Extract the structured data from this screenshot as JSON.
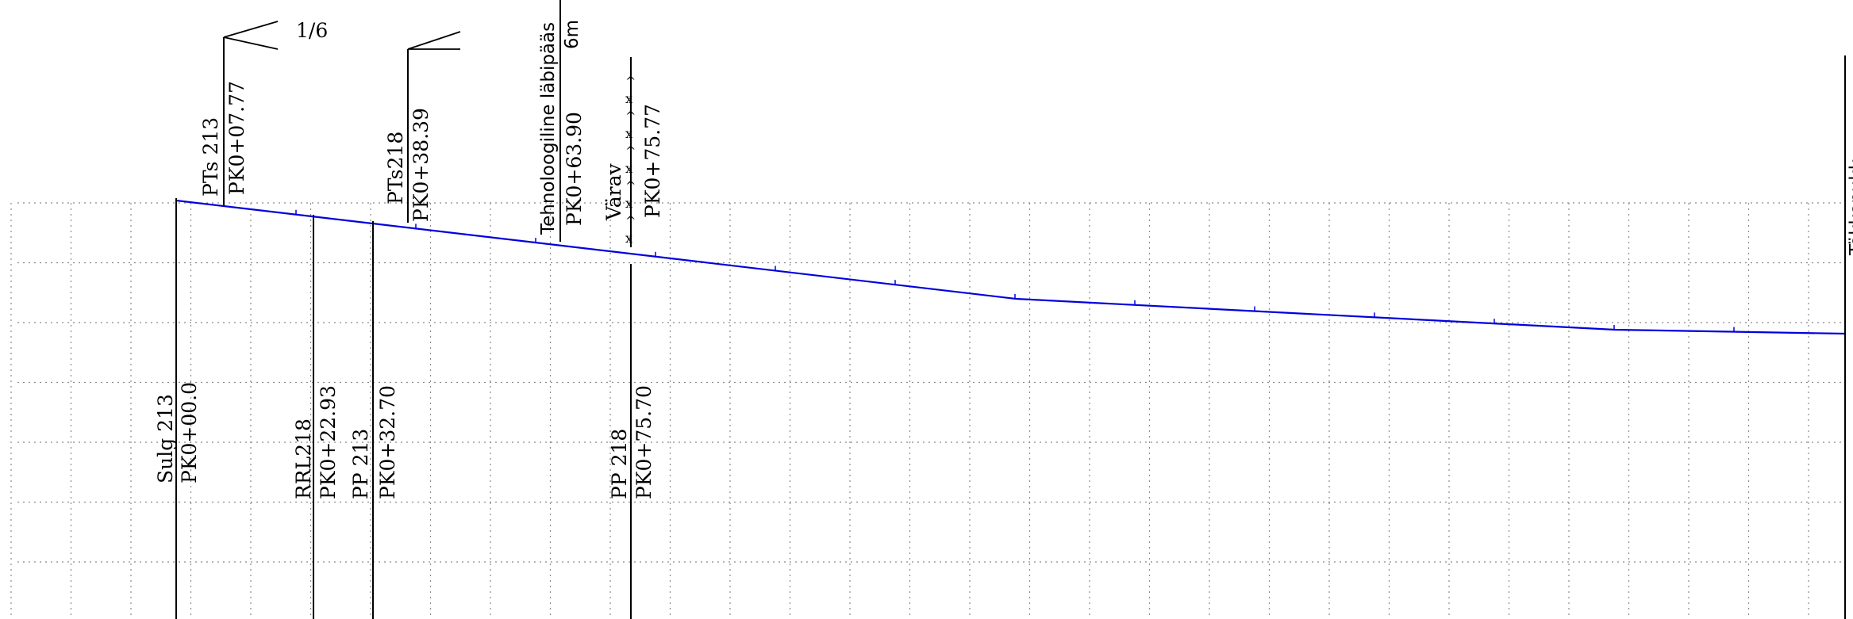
{
  "diagram": {
    "slope_label": "1/6",
    "station_markers_top": [
      {
        "id": "pts213",
        "name": "PTs 213",
        "chainage": "PK0+07.77"
      },
      {
        "id": "pts218",
        "name": "PTs218",
        "chainage": "PK0+38.39"
      },
      {
        "id": "passage",
        "name": "Tehnoloogiline läbipääs",
        "width": "6m",
        "chainage": "PK0+63.90"
      },
      {
        "id": "gate",
        "name": "Värav",
        "chainage": "PK0+75.77"
      }
    ],
    "station_markers_bottom": [
      {
        "id": "sulg213",
        "name": "Sulg 213",
        "chainage": "PK0+00.0"
      },
      {
        "id": "rrl218",
        "name": "RRL218",
        "chainage": "PK0+22.93"
      },
      {
        "id": "pp213",
        "name": "PP 213",
        "chainage": "PK0+32.70"
      },
      {
        "id": "pp218",
        "name": "PP 218",
        "chainage": "PK0+75.70"
      }
    ],
    "end_label": "Tökkepukk",
    "colors": {
      "track_line": "#0000dd",
      "grid": "#8a8a8a",
      "ink": "#000000"
    }
  }
}
